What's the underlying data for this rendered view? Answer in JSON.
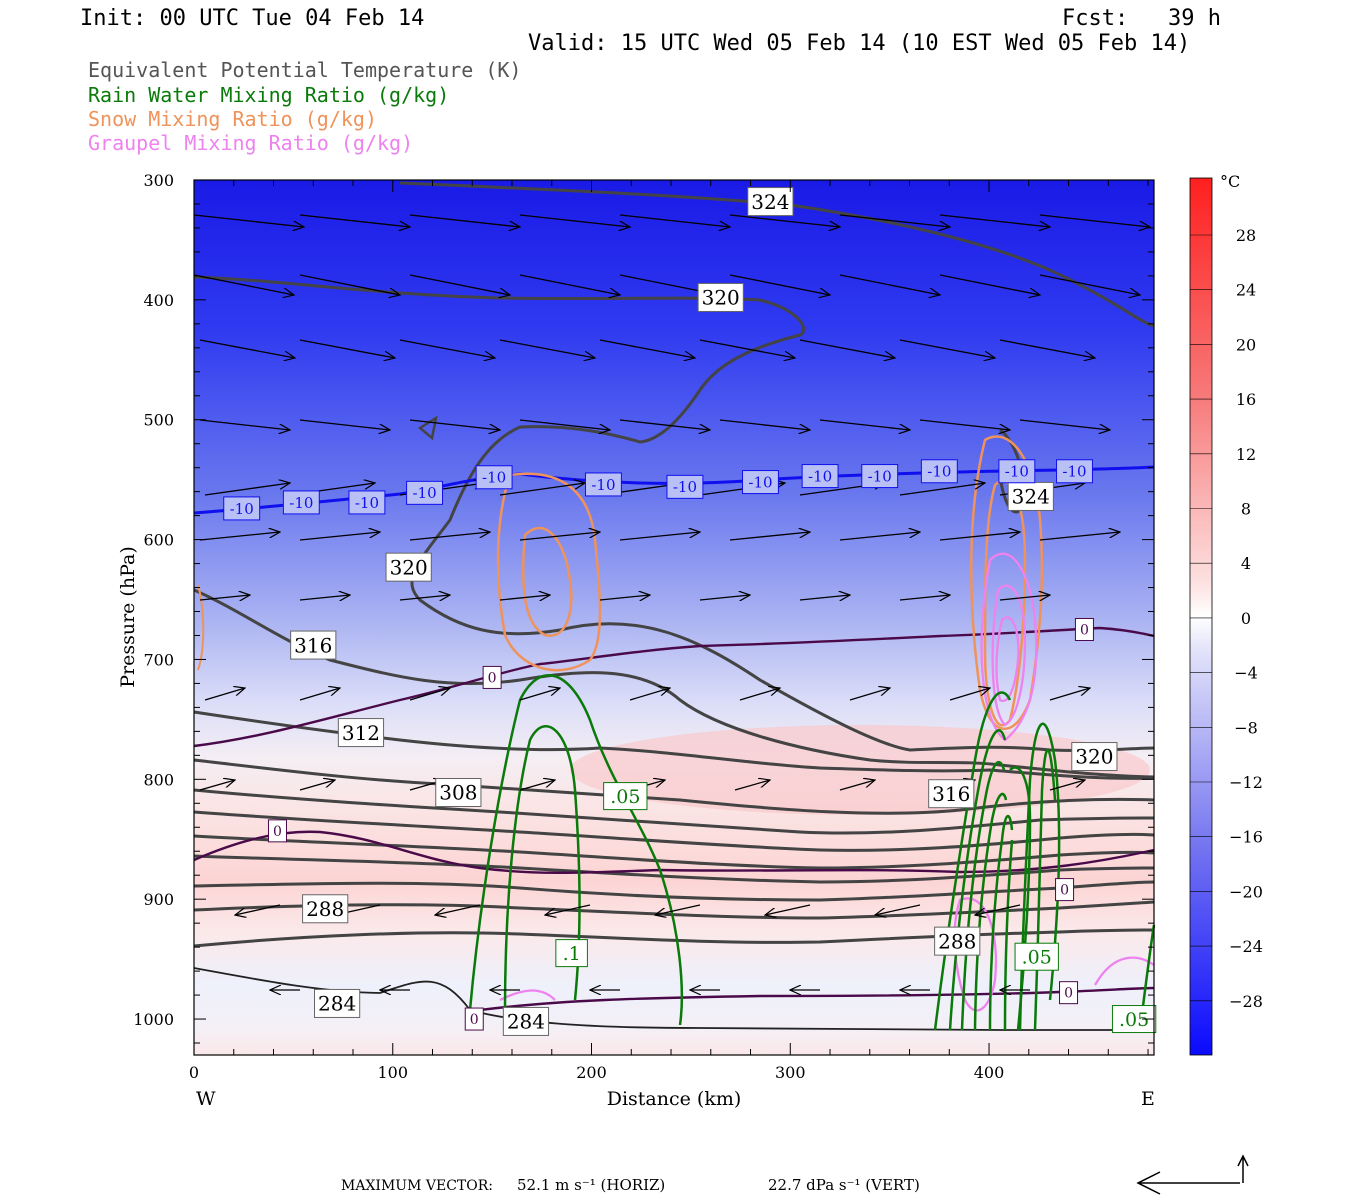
{
  "header": {
    "init": "Init: 00 UTC Tue 04 Feb 14",
    "fcst": "Fcst:   39 h",
    "valid": "Valid: 15 UTC Wed 05 Feb 14 (10 EST Wed 05 Feb 14)"
  },
  "legend": [
    {
      "text": "Equivalent Potential Temperature (K)",
      "color": "#555555"
    },
    {
      "text": "Rain Water Mixing Ratio (g/kg)",
      "color": "#0a7a0a"
    },
    {
      "text": "Snow Mixing Ratio (g/kg)",
      "color": "#f0935a"
    },
    {
      "text": "Graupel Mixing Ratio (g/kg)",
      "color": "#ee82ee"
    }
  ],
  "colorbar": {
    "unit": "°C",
    "labels": [
      "28",
      "24",
      "20",
      "16",
      "12",
      "8",
      "4",
      "0",
      "−4",
      "−8",
      "−12",
      "−16",
      "−20",
      "−24",
      "−28"
    ]
  },
  "footer": {
    "label": "MAXIMUM VECTOR:",
    "horiz": "52.1 m s⁻¹ (HORIZ)",
    "vert": "22.7 dPa s⁻¹ (VERT)"
  },
  "chart_data": {
    "type": "cross-section contour",
    "xlabel": "Distance (km)",
    "ylabel": "Pressure (hPa)",
    "x_ticks": [
      0,
      100,
      200,
      300,
      400
    ],
    "y_ticks": [
      300,
      400,
      500,
      600,
      700,
      800,
      900,
      1000
    ],
    "xlim": [
      0,
      483
    ],
    "ylim": [
      300,
      1030
    ],
    "x_end_labels": {
      "left": "W",
      "right": "E"
    },
    "temperature_colorbar_range_C": [
      -32,
      32
    ],
    "theta_e_contour_labels": [
      {
        "text": "324",
        "x": 290,
        "p": 318
      },
      {
        "text": "320",
        "x": 265,
        "p": 398
      },
      {
        "text": "320",
        "x": 108,
        "p": 623
      },
      {
        "text": "316",
        "x": 60,
        "p": 688
      },
      {
        "text": "312",
        "x": 84,
        "p": 761
      },
      {
        "text": "308",
        "x": 133,
        "p": 811
      },
      {
        "text": "316",
        "x": 381,
        "p": 812
      },
      {
        "text": "320",
        "x": 453,
        "p": 781
      },
      {
        "text": "324",
        "x": 421,
        "p": 564
      },
      {
        "text": "288",
        "x": 66,
        "p": 908
      },
      {
        "text": "288",
        "x": 384,
        "p": 935
      },
      {
        "text": "284",
        "x": 72,
        "p": 987
      },
      {
        "text": "284",
        "x": 167,
        "p": 1002
      }
    ],
    "temperature_contour_labels": [
      {
        "text": "-10",
        "x": 24,
        "p": 574
      },
      {
        "text": "-10",
        "x": 54,
        "p": 569
      },
      {
        "text": "-10",
        "x": 87,
        "p": 569
      },
      {
        "text": "-10",
        "x": 116,
        "p": 561
      },
      {
        "text": "-10",
        "x": 151,
        "p": 548
      },
      {
        "text": "-10",
        "x": 206,
        "p": 554
      },
      {
        "text": "-10",
        "x": 247,
        "p": 556
      },
      {
        "text": "-10",
        "x": 285,
        "p": 552
      },
      {
        "text": "-10",
        "x": 315,
        "p": 547
      },
      {
        "text": "-10",
        "x": 345,
        "p": 547
      },
      {
        "text": "-10",
        "x": 375,
        "p": 543
      },
      {
        "text": "-10",
        "x": 414,
        "p": 543
      },
      {
        "text": "-10",
        "x": 443,
        "p": 543
      },
      {
        "text": "0",
        "x": 150,
        "p": 715
      },
      {
        "text": "0",
        "x": 42,
        "p": 843
      },
      {
        "text": "0",
        "x": 448,
        "p": 675
      },
      {
        "text": "0",
        "x": 438,
        "p": 892
      },
      {
        "text": "0",
        "x": 440,
        "p": 978
      },
      {
        "text": "0",
        "x": 141,
        "p": 1000
      }
    ],
    "rain_contour_labels": [
      {
        "text": ".05",
        "x": 217,
        "p": 814
      },
      {
        "text": ".1",
        "x": 190,
        "p": 945
      },
      {
        "text": ".05",
        "x": 424,
        "p": 948
      },
      {
        "text": ".05",
        "x": 473,
        "p": 1000
      }
    ]
  }
}
